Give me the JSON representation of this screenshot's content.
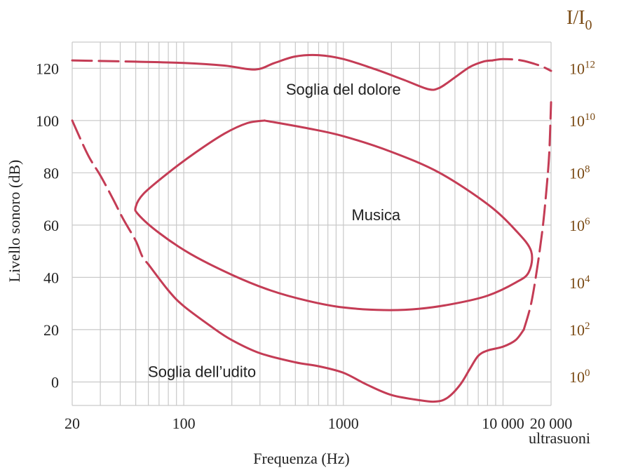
{
  "chart_data": {
    "type": "line",
    "xlabel": "Frequenza (Hz)",
    "ylabel": "Livello sonoro (dB)",
    "x_scale": "log",
    "xlim": [
      20,
      20000
    ],
    "ylim": [
      -9,
      130
    ],
    "x_ticks": [
      {
        "value": 20,
        "label": "20"
      },
      {
        "value": 100,
        "label": "100"
      },
      {
        "value": 1000,
        "label": "1000"
      },
      {
        "value": 10000,
        "label": "10 000"
      },
      {
        "value": 20000,
        "label": "20 000"
      }
    ],
    "y_ticks": [
      0,
      20,
      40,
      60,
      80,
      100,
      120
    ],
    "x_extra_label": "ultrasuoni",
    "right_axis": {
      "title_main": "I/I",
      "title_sub": "0",
      "labels": [
        {
          "base": "10",
          "exp": "12",
          "db": 120
        },
        {
          "base": "10",
          "exp": "10",
          "db": 100
        },
        {
          "base": "10",
          "exp": "8",
          "db": 80
        },
        {
          "base": "10",
          "exp": "6",
          "db": 60
        },
        {
          "base": "10",
          "exp": "4",
          "db": 38
        },
        {
          "base": "10",
          "exp": "2",
          "db": 20
        },
        {
          "base": "10",
          "exp": "0",
          "db": 2
        }
      ]
    },
    "grid": true,
    "curve_color": "#c43c55",
    "series": [
      {
        "name": "Soglia del dolore",
        "label_at": {
          "x": 1000,
          "y": 112
        },
        "segments": [
          {
            "dashed": true,
            "points": [
              [
                20,
                123
              ],
              [
                50,
                122.5
              ]
            ]
          },
          {
            "dashed": false,
            "points": [
              [
                50,
                122.5
              ],
              [
                100,
                122
              ],
              [
                180,
                121
              ],
              [
                280,
                119.5
              ],
              [
                370,
                122
              ],
              [
                500,
                124.5
              ],
              [
                700,
                125
              ],
              [
                1000,
                123.5
              ],
              [
                1600,
                119.5
              ],
              [
                2400,
                115.5
              ],
              [
                3400,
                112
              ],
              [
                4000,
                112.5
              ],
              [
                5000,
                116.5
              ],
              [
                6200,
                120.5
              ],
              [
                7500,
                122.5
              ],
              [
                8600,
                123
              ]
            ]
          },
          {
            "dashed": true,
            "points": [
              [
                8600,
                123
              ],
              [
                10000,
                123.5
              ],
              [
                13000,
                123
              ],
              [
                17000,
                121
              ],
              [
                20000,
                119
              ]
            ]
          }
        ]
      },
      {
        "name": "Musica",
        "label_at": {
          "x": 1600,
          "y": 64
        },
        "closed": true,
        "segments": [
          {
            "dashed": false,
            "points": [
              [
                320,
                100
              ],
              [
                600,
                97
              ],
              [
                1000,
                94
              ],
              [
                2000,
                88
              ],
              [
                4000,
                80
              ],
              [
                8000,
                68
              ],
              [
                12000,
                58
              ],
              [
                15000,
                50
              ],
              [
                14500,
                42
              ],
              [
                12000,
                38
              ],
              [
                8000,
                33
              ],
              [
                5000,
                30
              ],
              [
                3000,
                28
              ],
              [
                1800,
                27.5
              ],
              [
                1000,
                28.5
              ],
              [
                600,
                31
              ],
              [
                350,
                35
              ],
              [
                200,
                41
              ],
              [
                110,
                49
              ],
              [
                70,
                57
              ],
              [
                52,
                64
              ],
              [
                50,
                67
              ],
              [
                56,
                72
              ],
              [
                80,
                80
              ],
              [
                120,
                88
              ],
              [
                180,
                95
              ],
              [
                250,
                99
              ],
              [
                320,
                100
              ]
            ]
          }
        ]
      },
      {
        "name": "Soglia dell’udito",
        "label_at": {
          "x": 130,
          "y": 4
        },
        "segments": [
          {
            "dashed": true,
            "points": [
              [
                20,
                100
              ],
              [
                25,
                87
              ],
              [
                30,
                79
              ],
              [
                36,
                70
              ],
              [
                42,
                62
              ],
              [
                50,
                54
              ],
              [
                55,
                48
              ],
              [
                60,
                45
              ]
            ]
          },
          {
            "dashed": false,
            "points": [
              [
                60,
                45
              ],
              [
                80,
                35
              ],
              [
                100,
                29
              ],
              [
                150,
                21
              ],
              [
                200,
                16
              ],
              [
                300,
                11
              ],
              [
                500,
                7.5
              ],
              [
                700,
                6
              ],
              [
                1000,
                3.5
              ],
              [
                1400,
                -1
              ],
              [
                2000,
                -5
              ],
              [
                3000,
                -7
              ],
              [
                3800,
                -7.5
              ],
              [
                4500,
                -6
              ],
              [
                5400,
                -1
              ],
              [
                6200,
                5
              ],
              [
                7000,
                10
              ],
              [
                8000,
                12
              ],
              [
                10000,
                13.5
              ],
              [
                12000,
                16
              ],
              [
                13500,
                20
              ]
            ]
          },
          {
            "dashed": true,
            "points": [
              [
                13500,
                20
              ],
              [
                15000,
                30
              ],
              [
                16500,
                45
              ],
              [
                17800,
                60
              ],
              [
                18800,
                75
              ],
              [
                19500,
                88
              ],
              [
                20000,
                107
              ]
            ]
          }
        ]
      }
    ]
  }
}
